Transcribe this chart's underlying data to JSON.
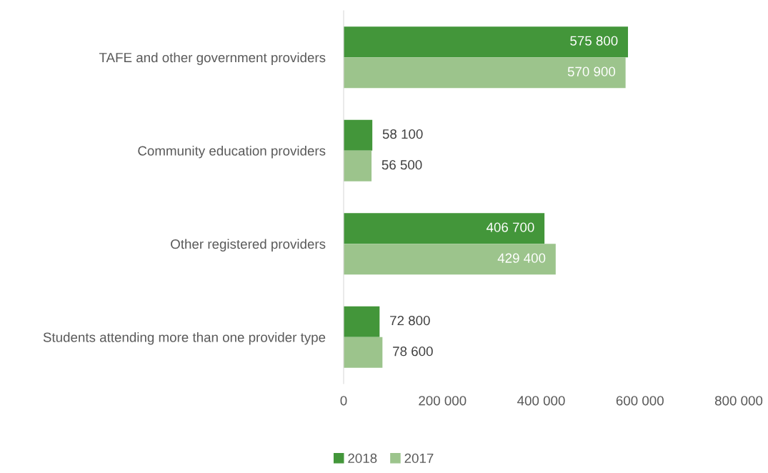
{
  "chart_data": {
    "type": "bar",
    "orientation": "horizontal",
    "categories": [
      "TAFE and other government providers",
      "Community education providers",
      "Other registered providers",
      "Students attending more than one provider type"
    ],
    "series": [
      {
        "name": "2018",
        "color": "#43963a",
        "values": [
          575800,
          58100,
          406700,
          72800
        ],
        "value_labels": [
          "575 800",
          "58 100",
          "406 700",
          "72 800"
        ]
      },
      {
        "name": "2017",
        "color": "#9cc48c",
        "values": [
          570900,
          56500,
          429400,
          78600
        ],
        "value_labels": [
          "570 900",
          "56 500",
          "429 400",
          "78 600"
        ]
      }
    ],
    "xlim": [
      0,
      800000
    ],
    "xticks": [
      0,
      {
        "value": 200000,
        "label": "200 000"
      },
      {
        "value": 400000,
        "label": "400 000"
      },
      {
        "value": 600000,
        "label": "600 000"
      },
      {
        "value": 800000,
        "label": "800 000"
      }
    ],
    "grid": false,
    "legend": "bottom"
  }
}
